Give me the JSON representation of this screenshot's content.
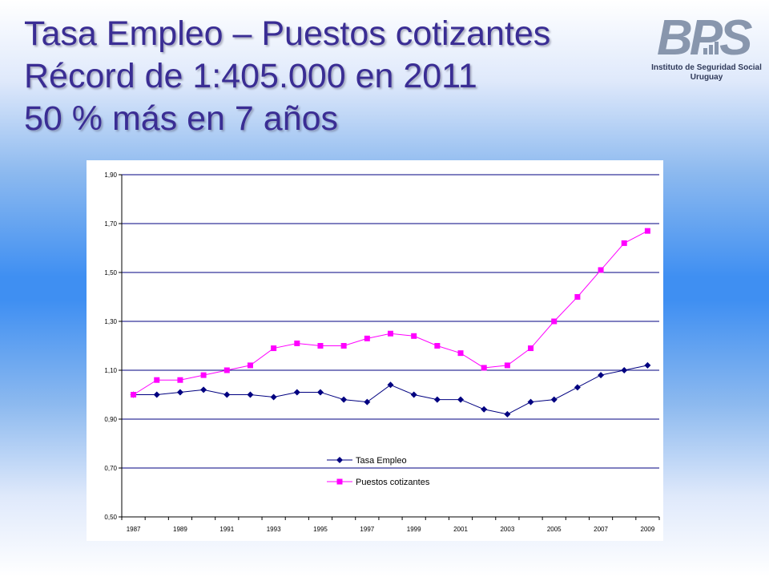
{
  "title": {
    "line1": "Tasa Empleo – Puestos cotizantes",
    "line2": "Récord de 1:405.000 en 2011",
    "line3": "50 % más en 7 años"
  },
  "logo": {
    "brand": "BPS",
    "subtitle_line1": "Instituto de Seguridad Social",
    "subtitle_line2": "Uruguay",
    "color": "#8896ad"
  },
  "colors": {
    "title": "#3a2d94",
    "grid": "#000080",
    "series_1": "#000080",
    "series_2": "#ff00ff"
  },
  "chart_data": {
    "type": "line",
    "x": [
      1987,
      1988,
      1989,
      1990,
      1991,
      1992,
      1993,
      1994,
      1995,
      1996,
      1997,
      1998,
      1999,
      2000,
      2001,
      2002,
      2003,
      2004,
      2005,
      2006,
      2007,
      2008,
      2009
    ],
    "x_tick_labels": [
      "1987",
      "1989",
      "1991",
      "1993",
      "1995",
      "1997",
      "1999",
      "2001",
      "2003",
      "2005",
      "2007",
      "2009"
    ],
    "y_tick_labels": [
      "0,50",
      "0,70",
      "0,90",
      "1,10",
      "1,30",
      "1,50",
      "1,70",
      "1,90"
    ],
    "ylim": [
      0.5,
      1.9
    ],
    "grid": true,
    "legend_placement": "bottom-center",
    "series": [
      {
        "name": "Tasa Empleo",
        "marker": "diamond",
        "values": [
          1.0,
          1.0,
          1.01,
          1.02,
          1.0,
          1.0,
          0.99,
          1.01,
          1.01,
          0.98,
          0.97,
          1.04,
          1.0,
          0.98,
          0.98,
          0.94,
          0.92,
          0.97,
          0.98,
          1.03,
          1.08,
          1.1,
          1.12
        ]
      },
      {
        "name": "Puestos cotizantes",
        "marker": "square",
        "values": [
          1.0,
          1.06,
          1.06,
          1.08,
          1.1,
          1.12,
          1.19,
          1.21,
          1.2,
          1.2,
          1.23,
          1.25,
          1.24,
          1.2,
          1.17,
          1.11,
          1.12,
          1.19,
          1.3,
          1.4,
          1.51,
          1.62,
          1.67
        ]
      }
    ]
  }
}
